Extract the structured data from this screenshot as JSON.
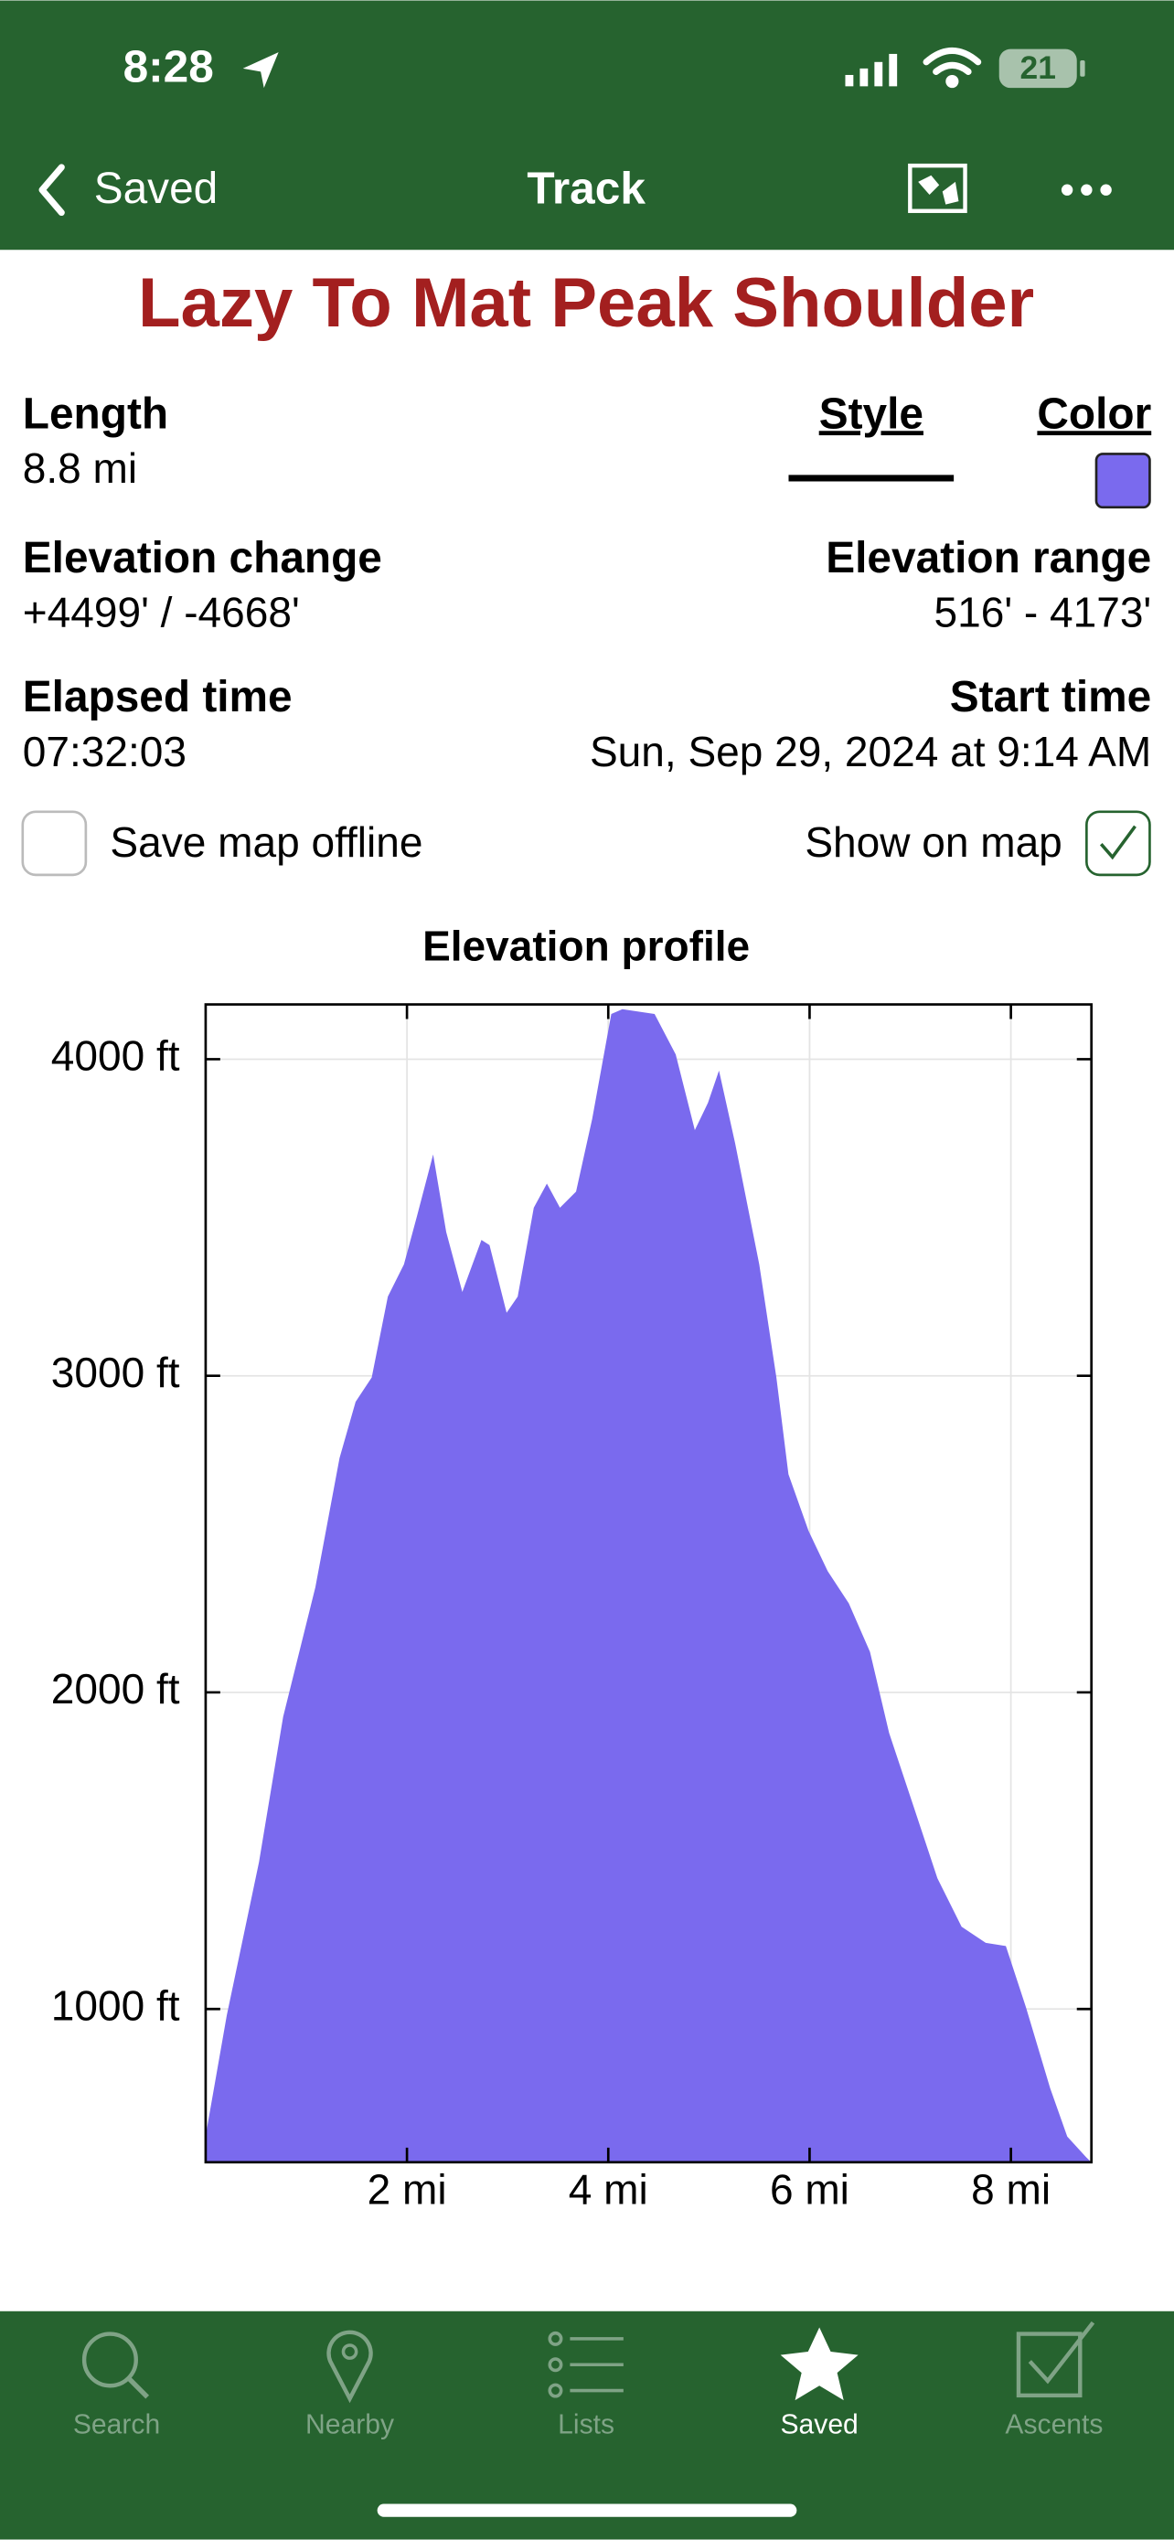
{
  "status_bar": {
    "time": "8:28",
    "battery": "21"
  },
  "nav": {
    "back": "Saved",
    "title": "Track"
  },
  "track": {
    "name": "Lazy To Mat Peak Shoulder",
    "length_label": "Length",
    "length": "8.8 mi",
    "style_label": "Style",
    "color_label": "Color",
    "elevation_change_label": "Elevation change",
    "elevation_change": "+4499' / -4668'",
    "elevation_range_label": "Elevation range",
    "elevation_range": "516' - 4173'",
    "elapsed_label": "Elapsed time",
    "elapsed": "07:32:03",
    "start_label": "Start time",
    "start": "Sun, Sep 29, 2024 at 9:14 AM",
    "save_offline": "Save map offline",
    "show_on_map": "Show on map"
  },
  "chart_data": {
    "type": "area",
    "title": "Elevation profile",
    "color": "#7a6aee",
    "x": [
      0,
      0.21,
      0.53,
      0.77,
      1.09,
      1.33,
      1.49,
      1.65,
      1.81,
      1.97,
      2.1,
      2.26,
      2.39,
      2.55,
      2.74,
      2.82,
      2.99,
      3.1,
      3.26,
      3.39,
      3.52,
      3.68,
      3.84,
      4.03,
      4.14,
      4.46,
      4.67,
      4.86,
      4.99,
      5.1,
      5.26,
      5.5,
      5.67,
      5.79,
      5.99,
      6.18,
      6.39,
      6.6,
      6.79,
      7.03,
      7.27,
      7.51,
      7.75,
      7.95,
      8.15,
      8.39,
      8.56,
      8.75,
      8.8
    ],
    "values": [
      600,
      980,
      1464,
      1923,
      2332,
      2740,
      2918,
      2995,
      3250,
      3352,
      3505,
      3699,
      3454,
      3265,
      3429,
      3413,
      3199,
      3250,
      3531,
      3607,
      3531,
      3582,
      3811,
      4143,
      4158,
      4143,
      4015,
      3776,
      3862,
      3964,
      3735,
      3352,
      2995,
      2689,
      2510,
      2383,
      2281,
      2128,
      1872,
      1643,
      1413,
      1260,
      1209,
      1199,
      1005,
      750,
      597,
      531,
      516
    ],
    "xlim": [
      0,
      8.8
    ],
    "ylim": [
      516,
      4173
    ],
    "xticks": [
      {
        "value": 2,
        "label": "2 mi"
      },
      {
        "value": 4,
        "label": "4 mi"
      },
      {
        "value": 6,
        "label": "6 mi"
      },
      {
        "value": 8,
        "label": "8 mi"
      }
    ],
    "yticks": [
      {
        "value": 1000,
        "label": "1000 ft"
      },
      {
        "value": 2000,
        "label": "2000 ft"
      },
      {
        "value": 3000,
        "label": "3000 ft"
      },
      {
        "value": 4000,
        "label": "4000 ft"
      }
    ],
    "grid": true
  },
  "tabs": [
    "Search",
    "Nearby",
    "Lists",
    "Saved",
    "Ascents"
  ]
}
